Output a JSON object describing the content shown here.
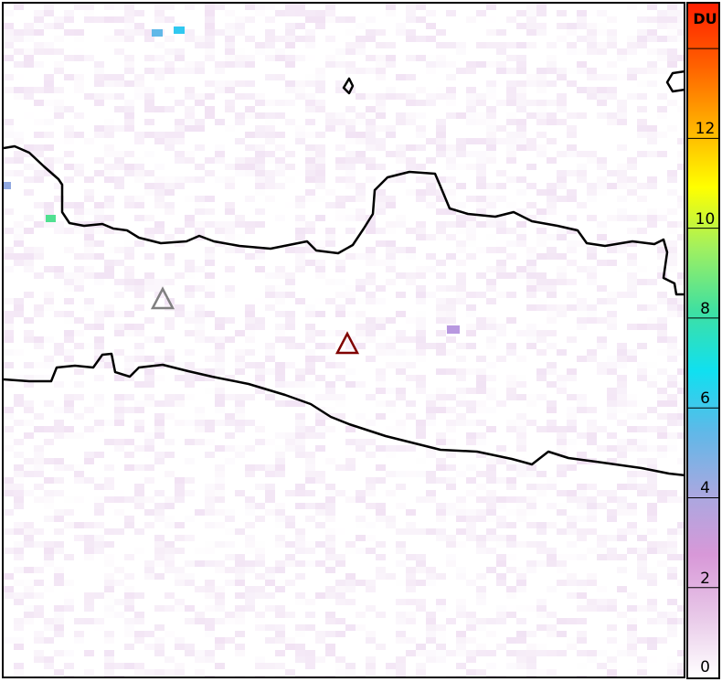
{
  "colorbar": {
    "unit_label": "DU",
    "min": 0,
    "max": 15,
    "ticks": [
      0,
      2,
      4,
      6,
      8,
      10,
      12,
      14
    ],
    "tick_labels": [
      "0",
      "2",
      "4",
      "6",
      "8",
      "10",
      "12",
      ""
    ],
    "colors": [
      "#ffffff",
      "#e8c8e8",
      "#d898d8",
      "#a8a8e0",
      "#60b8e8",
      "#10e0f0",
      "#40e0a0",
      "#a0f060",
      "#ffff00",
      "#ffb000",
      "#ff6000",
      "#ff2000"
    ]
  },
  "markers": [
    {
      "name": "volcano-marker-gray",
      "color": "#808080"
    },
    {
      "name": "volcano-marker-red",
      "color": "#800000"
    }
  ],
  "coastline_color": "#000000"
}
